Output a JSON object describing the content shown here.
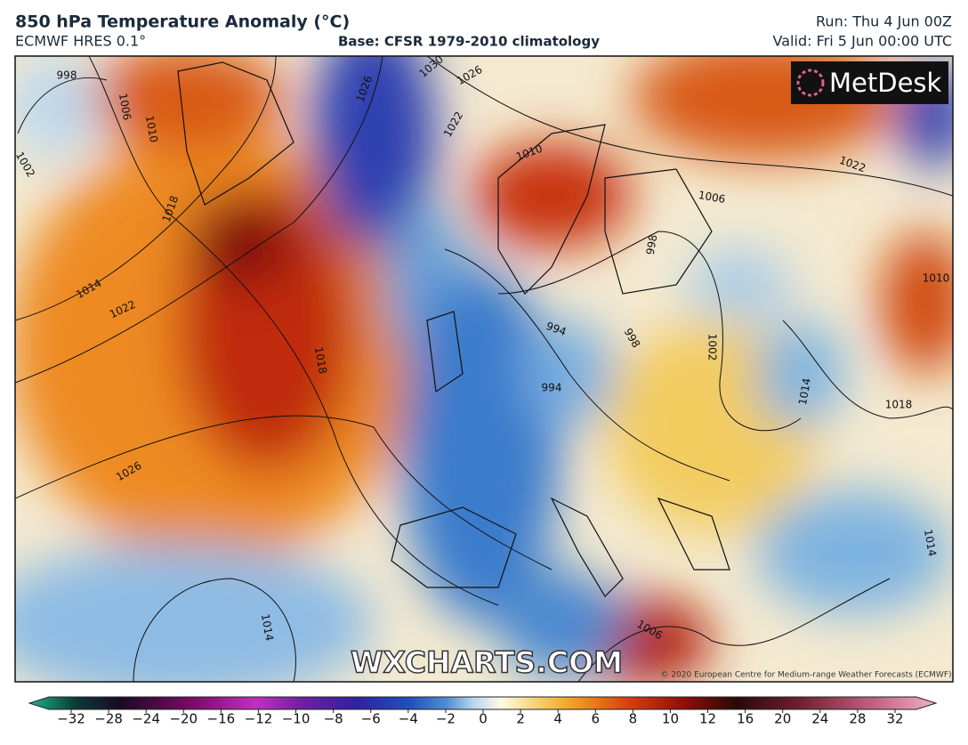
{
  "header": {
    "title": "850 hPa Temperature Anomaly (°C)",
    "model": "ECMWF HRES 0.1°",
    "base": "Base: CFSR 1979-2010 climatology",
    "run": "Run: Thu 4 Jun 00Z",
    "valid": "Valid: Fri 5 Jun 00:00 UTC"
  },
  "logo": "MetDesk",
  "watermark": "WXCHARTS.COM",
  "credit": "© 2020 European Centre for Medium-range Weather Forecasts (ECMWF)",
  "isobar_labels": [
    998,
    1006,
    1010,
    1002,
    1018,
    1014,
    1022,
    1026,
    1018,
    1030,
    1026,
    1022,
    1026,
    1010,
    1006,
    1022,
    998,
    994,
    998,
    1002,
    994,
    1014,
    1018,
    1010,
    1014,
    1006,
    1014
  ],
  "colorbar": {
    "ticks": [
      {
        "value": -32,
        "label": "−32"
      },
      {
        "value": -28,
        "label": "−28"
      },
      {
        "value": -24,
        "label": "−24"
      },
      {
        "value": -20,
        "label": "−20"
      },
      {
        "value": -16,
        "label": "−16"
      },
      {
        "value": -12,
        "label": "−12"
      },
      {
        "value": -10,
        "label": "−10"
      },
      {
        "value": -8,
        "label": "−8"
      },
      {
        "value": -6,
        "label": "−6"
      },
      {
        "value": -4,
        "label": "−4"
      },
      {
        "value": -2,
        "label": "−2"
      },
      0,
      2,
      4,
      6,
      8,
      10,
      12,
      16,
      20,
      24,
      28,
      32
    ]
  }
}
